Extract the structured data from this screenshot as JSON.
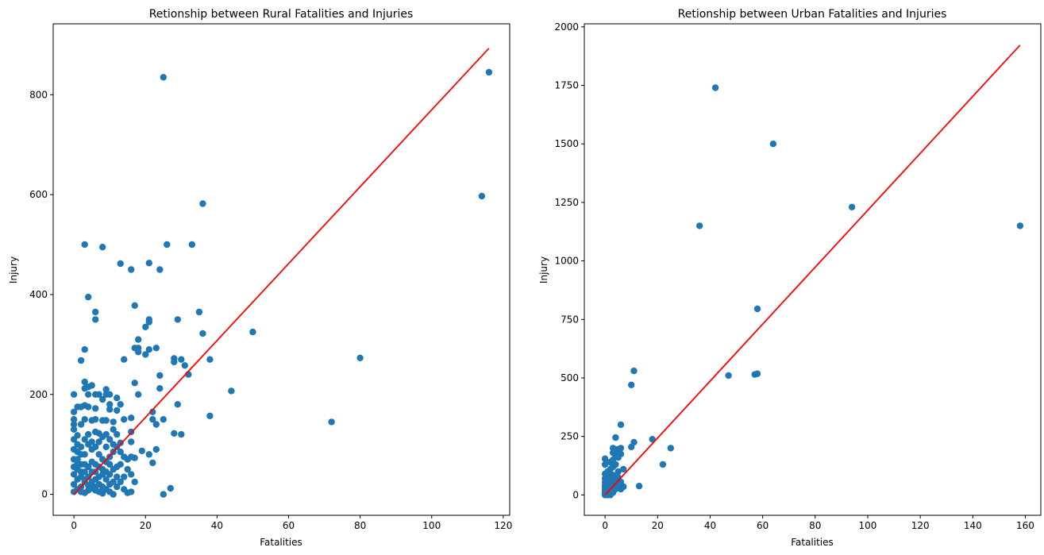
{
  "chart_data": [
    {
      "type": "scatter",
      "title": "Retionship between Rural Fatalities and Injuries",
      "xlabel": "Fatalities",
      "ylabel": "Injury",
      "xlim": [
        -5.8,
        121.8
      ],
      "ylim": [
        -42,
        942
      ],
      "xticks": [
        0,
        20,
        40,
        60,
        80,
        100,
        120
      ],
      "yticks": [
        0,
        200,
        400,
        600,
        800
      ],
      "grid": false,
      "point_color": "#1f77b4",
      "line_color": "#ff0000",
      "trend_line": {
        "x": [
          0,
          116
        ],
        "y": [
          0,
          893
        ]
      },
      "points": [
        [
          116,
          845
        ],
        [
          114,
          597
        ],
        [
          25,
          835
        ],
        [
          80,
          273
        ],
        [
          72,
          145
        ],
        [
          50,
          325
        ],
        [
          44,
          207
        ],
        [
          38,
          270
        ],
        [
          38,
          157
        ],
        [
          36,
          582
        ],
        [
          36,
          322
        ],
        [
          35,
          365
        ],
        [
          33,
          500
        ],
        [
          32,
          240
        ],
        [
          31,
          258
        ],
        [
          30,
          270
        ],
        [
          29,
          350
        ],
        [
          29,
          180
        ],
        [
          30,
          120
        ],
        [
          28,
          272
        ],
        [
          28,
          265
        ],
        [
          28,
          122
        ],
        [
          26,
          500
        ],
        [
          25,
          150
        ],
        [
          24,
          450
        ],
        [
          24,
          238
        ],
        [
          24,
          212
        ],
        [
          23,
          293
        ],
        [
          23,
          90
        ],
        [
          23,
          140
        ],
        [
          22,
          165
        ],
        [
          22,
          150
        ],
        [
          22,
          63
        ],
        [
          21,
          463
        ],
        [
          21,
          350
        ],
        [
          21,
          345
        ],
        [
          21,
          290
        ],
        [
          21,
          80
        ],
        [
          20,
          335
        ],
        [
          20,
          280
        ],
        [
          19,
          87
        ],
        [
          18,
          310
        ],
        [
          18,
          293
        ],
        [
          18,
          285
        ],
        [
          18,
          200
        ],
        [
          17,
          378
        ],
        [
          17,
          293
        ],
        [
          17,
          223
        ],
        [
          17,
          25
        ],
        [
          17,
          73
        ],
        [
          16,
          450
        ],
        [
          16,
          153
        ],
        [
          16,
          125
        ],
        [
          16,
          105
        ],
        [
          16,
          75
        ],
        [
          16,
          5
        ],
        [
          15,
          3
        ],
        [
          14,
          270
        ],
        [
          14,
          150
        ],
        [
          13,
          462
        ],
        [
          13,
          180
        ],
        [
          13,
          103
        ],
        [
          12,
          193
        ],
        [
          12,
          168
        ],
        [
          12,
          120
        ],
        [
          11,
          145
        ],
        [
          11,
          85
        ],
        [
          10,
          200
        ],
        [
          10,
          180
        ],
        [
          10,
          170
        ],
        [
          9,
          210
        ],
        [
          9,
          200
        ],
        [
          9,
          148
        ],
        [
          8,
          495
        ],
        [
          8,
          190
        ],
        [
          8,
          148
        ],
        [
          7,
          200
        ],
        [
          7,
          122
        ],
        [
          6,
          365
        ],
        [
          6,
          350
        ],
        [
          6,
          200
        ],
        [
          6,
          172
        ],
        [
          6,
          150
        ],
        [
          6,
          125
        ],
        [
          5,
          218
        ],
        [
          5,
          148
        ],
        [
          4,
          395
        ],
        [
          4,
          215
        ],
        [
          4,
          200
        ],
        [
          4,
          175
        ],
        [
          3,
          500
        ],
        [
          3,
          290
        ],
        [
          3,
          225
        ],
        [
          3,
          212
        ],
        [
          3,
          178
        ],
        [
          3,
          150
        ],
        [
          2,
          268
        ],
        [
          2,
          175
        ],
        [
          2,
          140
        ],
        [
          1,
          175
        ],
        [
          1,
          118
        ],
        [
          0,
          200
        ],
        [
          0,
          165
        ],
        [
          0,
          140
        ],
        [
          0,
          130
        ],
        [
          27,
          12
        ],
        [
          25,
          0
        ],
        [
          14,
          10
        ],
        [
          11,
          0
        ],
        [
          11,
          130
        ],
        [
          12,
          55
        ],
        [
          15,
          50
        ],
        [
          13,
          60
        ],
        [
          10,
          40
        ],
        [
          9,
          95
        ],
        [
          8,
          70
        ],
        [
          7,
          80
        ],
        [
          6,
          60
        ],
        [
          5,
          90
        ],
        [
          4,
          100
        ],
        [
          3,
          80
        ],
        [
          2,
          60
        ],
        [
          1,
          50
        ],
        [
          0,
          40
        ],
        [
          0,
          20
        ],
        [
          0,
          5
        ],
        [
          1,
          10
        ],
        [
          2,
          15
        ],
        [
          3,
          25
        ],
        [
          4,
          35
        ],
        [
          5,
          45
        ],
        [
          6,
          30
        ],
        [
          7,
          20
        ],
        [
          8,
          15
        ],
        [
          9,
          10
        ],
        [
          10,
          5
        ],
        [
          2,
          5
        ],
        [
          3,
          3
        ],
        [
          4,
          8
        ],
        [
          1,
          30
        ],
        [
          0,
          90
        ],
        [
          0,
          70
        ],
        [
          1,
          85
        ],
        [
          2,
          95
        ],
        [
          3,
          110
        ],
        [
          4,
          120
        ],
        [
          5,
          105
        ],
        [
          6,
          95
        ],
        [
          7,
          105
        ],
        [
          8,
          115
        ],
        [
          9,
          120
        ],
        [
          10,
          110
        ],
        [
          11,
          100
        ],
        [
          12,
          95
        ],
        [
          13,
          85
        ],
        [
          14,
          75
        ],
        [
          15,
          70
        ],
        [
          16,
          40
        ],
        [
          11,
          50
        ],
        [
          10,
          75
        ],
        [
          9,
          65
        ],
        [
          8,
          40
        ],
        [
          7,
          55
        ],
        [
          6,
          45
        ],
        [
          5,
          65
        ],
        [
          4,
          55
        ],
        [
          3,
          45
        ],
        [
          2,
          35
        ],
        [
          1,
          70
        ],
        [
          0,
          110
        ],
        [
          0,
          55
        ],
        [
          12,
          15
        ],
        [
          13,
          25
        ],
        [
          14,
          35
        ],
        [
          8,
          2
        ],
        [
          9,
          30
        ],
        [
          10,
          20
        ],
        [
          7,
          5
        ],
        [
          6,
          8
        ],
        [
          5,
          12
        ],
        [
          4,
          18
        ],
        [
          3,
          60
        ],
        [
          2,
          80
        ],
        [
          1,
          100
        ],
        [
          0,
          150
        ],
        [
          1,
          60
        ],
        [
          2,
          45
        ],
        [
          3,
          30
        ],
        [
          5,
          25
        ],
        [
          6,
          15
        ],
        [
          7,
          35
        ],
        [
          8,
          50
        ],
        [
          9,
          45
        ],
        [
          10,
          60
        ],
        [
          11,
          25
        ],
        [
          12,
          35
        ]
      ]
    },
    {
      "type": "scatter",
      "title": "Retionship between Urban Fatalities and Injuries",
      "xlabel": "Fatalities",
      "ylabel": "Injury",
      "xlim": [
        -7.9,
        165.9
      ],
      "ylim": [
        -87,
        2013
      ],
      "xticks": [
        0,
        20,
        40,
        60,
        80,
        100,
        120,
        140,
        160
      ],
      "yticks": [
        0,
        250,
        500,
        750,
        1000,
        1250,
        1500,
        1750,
        2000
      ],
      "grid": false,
      "point_color": "#1f77b4",
      "line_color": "#ff0000",
      "trend_line": {
        "x": [
          0,
          158
        ],
        "y": [
          0,
          1922
        ]
      },
      "points": [
        [
          158,
          1150
        ],
        [
          94,
          1230
        ],
        [
          64,
          1500
        ],
        [
          42,
          1740
        ],
        [
          36,
          1150
        ],
        [
          58,
          795
        ],
        [
          58,
          518
        ],
        [
          57,
          515
        ],
        [
          47,
          510
        ],
        [
          25,
          200
        ],
        [
          22,
          130
        ],
        [
          18,
          238
        ],
        [
          13,
          38
        ],
        [
          11,
          530
        ],
        [
          11,
          225
        ],
        [
          10,
          470
        ],
        [
          10,
          205
        ],
        [
          7,
          110
        ],
        [
          7,
          35
        ],
        [
          6,
          300
        ],
        [
          6,
          200
        ],
        [
          6,
          175
        ],
        [
          6,
          55
        ],
        [
          5,
          195
        ],
        [
          5,
          160
        ],
        [
          5,
          100
        ],
        [
          4,
          245
        ],
        [
          4,
          195
        ],
        [
          4,
          170
        ],
        [
          4,
          130
        ],
        [
          3,
          200
        ],
        [
          3,
          180
        ],
        [
          3,
          150
        ],
        [
          3,
          120
        ],
        [
          3,
          85
        ],
        [
          3,
          60
        ],
        [
          3,
          40
        ],
        [
          2,
          140
        ],
        [
          2,
          110
        ],
        [
          2,
          90
        ],
        [
          2,
          70
        ],
        [
          2,
          50
        ],
        [
          2,
          30
        ],
        [
          2,
          15
        ],
        [
          1,
          100
        ],
        [
          1,
          80
        ],
        [
          1,
          60
        ],
        [
          1,
          45
        ],
        [
          1,
          30
        ],
        [
          1,
          20
        ],
        [
          1,
          10
        ],
        [
          0,
          155
        ],
        [
          0,
          130
        ],
        [
          0,
          90
        ],
        [
          0,
          70
        ],
        [
          0,
          55
        ],
        [
          0,
          40
        ],
        [
          0,
          30
        ],
        [
          0,
          20
        ],
        [
          0,
          12
        ],
        [
          0,
          5
        ],
        [
          0,
          0
        ],
        [
          1,
          3
        ],
        [
          2,
          5
        ],
        [
          3,
          10
        ],
        [
          4,
          25
        ],
        [
          5,
          45
        ],
        [
          6,
          25
        ],
        [
          4,
          60
        ],
        [
          5,
          75
        ],
        [
          3,
          25
        ],
        [
          2,
          0
        ],
        [
          1,
          0
        ]
      ]
    }
  ]
}
